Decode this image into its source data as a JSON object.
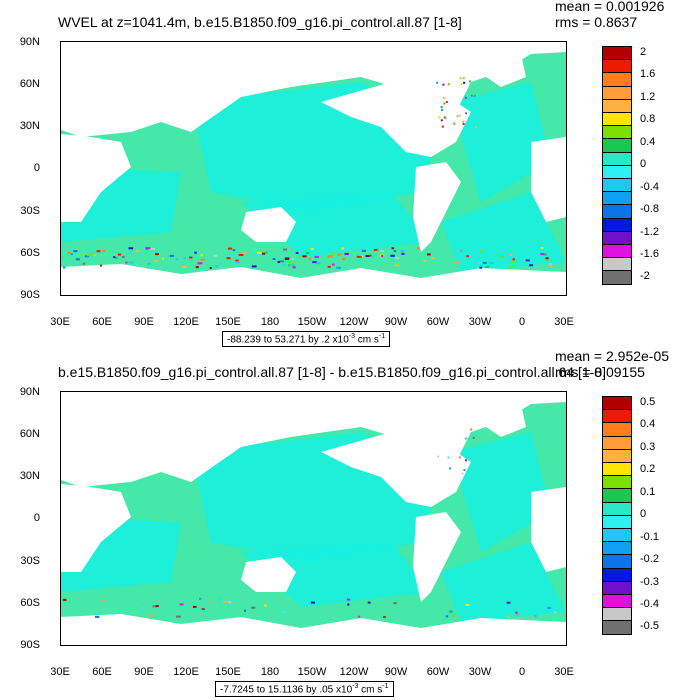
{
  "panels": [
    {
      "title": "WVEL at z=1041.4m, b.e15.B1850.f09_g16.pi_control.all.87 [1-8]",
      "mean_label": "mean = 0.001926",
      "rms_label": "rms = 0.8637",
      "range_text": "-88.239 to 53.271 by .2 x10",
      "range_exp": "-3",
      "range_units": " cm s",
      "range_units_exp": "-1",
      "colorbar_labels": [
        "2",
        "1.6",
        "1.2",
        "0.8",
        "0.4",
        "0",
        "-0.4",
        "-0.8",
        "-1.2",
        "-1.6",
        "-2"
      ]
    },
    {
      "title": "b.e15.B1850.f09_g16.pi_control.all.87 [1-8] - b.e15.B1850.f09_g16.pi_control.all.64 [1-8]",
      "mean_label": "mean = 2.952e-05",
      "rms_label": "rms = 0.09155",
      "range_text": "-7.7245 to 15.1136 by .05 x10",
      "range_exp": "-3",
      "range_units": " cm s",
      "range_units_exp": "-1",
      "colorbar_labels": [
        "0.5",
        "0.4",
        "0.3",
        "0.2",
        "0.1",
        "0",
        "-0.1",
        "-0.2",
        "-0.3",
        "-0.4",
        "-0.5"
      ]
    }
  ],
  "lat_labels": [
    "90N",
    "60N",
    "30N",
    "0",
    "30S",
    "60S",
    "90S"
  ],
  "lon_labels": [
    "30E",
    "60E",
    "90E",
    "120E",
    "150E",
    "180",
    "150W",
    "120W",
    "90W",
    "60W",
    "30W",
    "0",
    "30E"
  ],
  "colors": {
    "ocean": "#44e8a8",
    "ocean_cyan": "#18f0e0",
    "land": "#ffffff",
    "colorbar": [
      "#b00000",
      "#ee1a00",
      "#ff7d1a",
      "#ff9d3a",
      "#ffb040",
      "#ffe400",
      "#7be000",
      "#18c850",
      "#28e8c8",
      "#2ef0f0",
      "#1ec8f0",
      "#10a0f0",
      "#0a74e8",
      "#0018e0",
      "#7010c8",
      "#e010e0",
      "#c8c8c8",
      "#707070"
    ]
  }
}
